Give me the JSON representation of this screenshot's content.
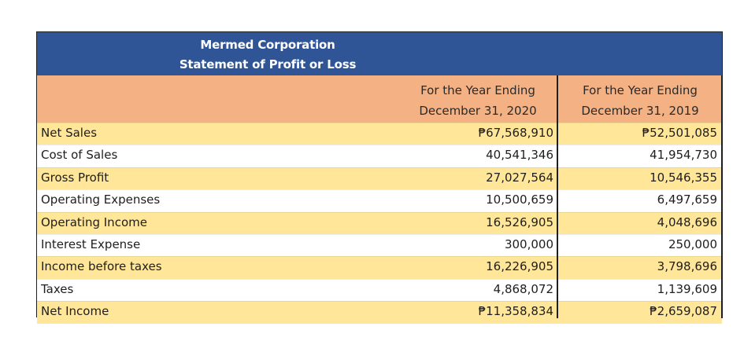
{
  "statement": {
    "company": "Mermed Corporation",
    "title": "Statement of Profit or Loss",
    "columns": [
      {
        "line1": "For the Year Ending",
        "line2": "December 31, 2020"
      },
      {
        "line1": "For the Year Ending",
        "line2": "December 31, 2019"
      }
    ],
    "rows": [
      {
        "label": "Net Sales",
        "v2020": "₱67,568,910",
        "v2019": "₱52,501,085"
      },
      {
        "label": "Cost of Sales",
        "v2020": "40,541,346",
        "v2019": "41,954,730"
      },
      {
        "label": "Gross Profit",
        "v2020": "27,027,564",
        "v2019": "10,546,355"
      },
      {
        "label": "Operating Expenses",
        "v2020": "10,500,659",
        "v2019": "6,497,659"
      },
      {
        "label": "Operating Income",
        "v2020": "16,526,905",
        "v2019": "4,048,696"
      },
      {
        "label": "Interest Expense",
        "v2020": "300,000",
        "v2019": "250,000"
      },
      {
        "label": "Income before taxes",
        "v2020": "16,226,905",
        "v2019": "3,798,696"
      },
      {
        "label": "Taxes",
        "v2020": "4,868,072",
        "v2019": "1,139,609"
      },
      {
        "label": "Net Income",
        "v2020": "₱11,358,834",
        "v2019": "₱2,659,087"
      }
    ]
  },
  "colors": {
    "title_band": "#2f5597",
    "header_band": "#f4b183",
    "alt_row": "#ffe699"
  }
}
